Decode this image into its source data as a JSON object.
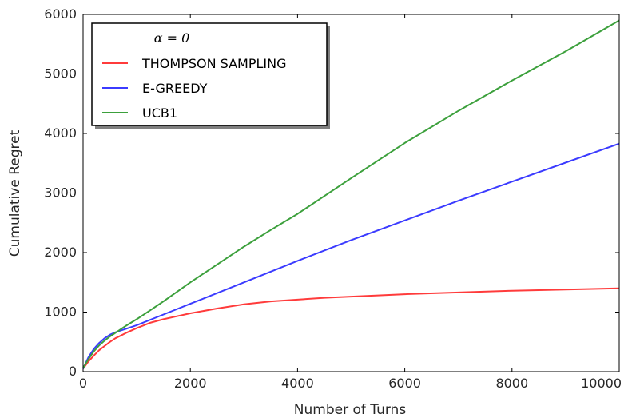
{
  "chart_data": {
    "type": "line",
    "xlabel": "Number of Turns",
    "ylabel": "Cumulative Regret",
    "xlim": [
      0,
      10000
    ],
    "ylim": [
      0,
      6000
    ],
    "xticks": [
      0,
      2000,
      4000,
      6000,
      8000,
      10000
    ],
    "yticks": [
      0,
      1000,
      2000,
      3000,
      4000,
      5000,
      6000
    ],
    "xtick_labels": [
      "0",
      "2000",
      "4000",
      "6000",
      "8000",
      "10000"
    ],
    "ytick_labels": [
      "0",
      "1000",
      "2000",
      "3000",
      "4000",
      "5000",
      "6000"
    ],
    "grid": false,
    "legend": {
      "title": "α = 0",
      "placement": "top-left"
    },
    "series": [
      {
        "name": "THOMPSON SAMPLING",
        "color": "#ff3b3b",
        "x": [
          0,
          100,
          200,
          300,
          400,
          500,
          600,
          800,
          1000,
          1250,
          1500,
          1750,
          2000,
          2500,
          3000,
          3500,
          4000,
          4500,
          5000,
          6000,
          7000,
          8000,
          9000,
          10000
        ],
        "y": [
          50,
          170,
          270,
          360,
          430,
          500,
          560,
          650,
          730,
          820,
          880,
          930,
          980,
          1060,
          1130,
          1180,
          1210,
          1240,
          1260,
          1300,
          1330,
          1360,
          1380,
          1400
        ]
      },
      {
        "name": "E-GREEDY",
        "color": "#3b3bff",
        "x": [
          0,
          100,
          200,
          300,
          400,
          500,
          600,
          700,
          800,
          1000,
          1500,
          2000,
          3000,
          4000,
          5000,
          6000,
          7000,
          8000,
          9000,
          10000
        ],
        "y": [
          50,
          240,
          380,
          480,
          560,
          620,
          660,
          690,
          720,
          780,
          960,
          1140,
          1500,
          1860,
          2210,
          2540,
          2870,
          3190,
          3510,
          3830
        ]
      },
      {
        "name": "UCB1",
        "color": "#3ca03c",
        "x": [
          0,
          100,
          200,
          300,
          400,
          500,
          600,
          700,
          800,
          1000,
          1250,
          1500,
          2000,
          2500,
          3000,
          3500,
          4000,
          5000,
          6000,
          7000,
          8000,
          9000,
          10000
        ],
        "y": [
          60,
          210,
          340,
          440,
          520,
          590,
          650,
          710,
          770,
          880,
          1030,
          1180,
          1500,
          1800,
          2100,
          2380,
          2650,
          3250,
          3840,
          4380,
          4890,
          5380,
          5900
        ]
      }
    ]
  }
}
